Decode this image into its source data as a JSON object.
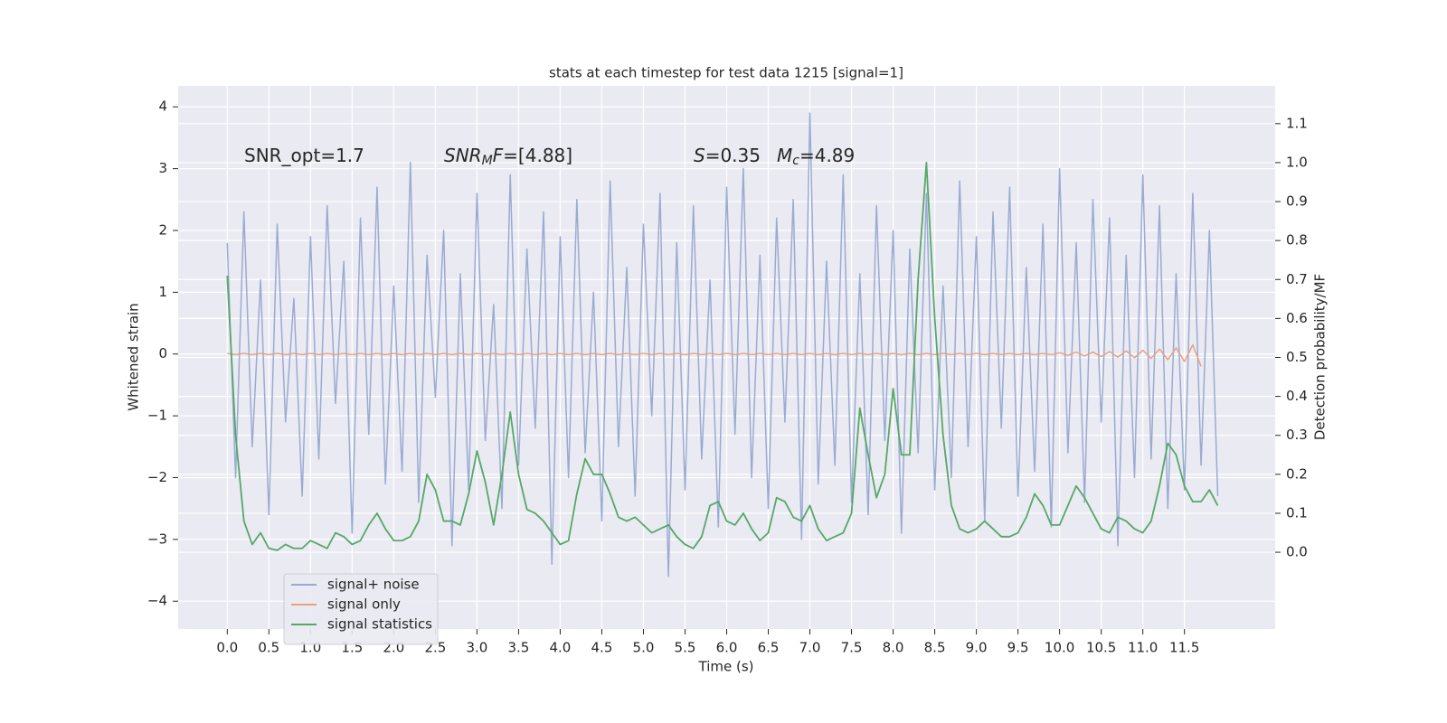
{
  "chart_data": {
    "type": "line",
    "title": "stats at each timestep for test data 1215 [signal=1]",
    "xlabel": "Time (s)",
    "ylabel": "Whitened strain",
    "y2label": "Detection probability/MF",
    "annotations": [
      {
        "parts": [
          {
            "text": "SNR_opt=1.7"
          }
        ]
      },
      {
        "parts": [
          {
            "text": "SNR",
            "italic": true
          },
          {
            "text": "M",
            "italic": true,
            "sub": true
          },
          {
            "text": "F",
            "italic": true
          },
          {
            "text": "=[4.88]"
          }
        ]
      },
      {
        "parts": [
          {
            "text": "S",
            "italic": true
          },
          {
            "text": "=0.35"
          }
        ]
      },
      {
        "parts": [
          {
            "text": "M",
            "italic": true
          },
          {
            "text": "c",
            "italic": true,
            "sub": true
          },
          {
            "text": "=4.89"
          }
        ]
      }
    ],
    "grid": true,
    "background": "#eaeaf2",
    "legend": "lower left",
    "xlim": [
      -0.59,
      12.59
    ],
    "ylim": [
      -4.45,
      4.34
    ],
    "y2lim": [
      -0.197,
      1.197
    ],
    "xticks": [
      {
        "value": 0,
        "label": "0.0"
      },
      {
        "value": 0.5,
        "label": "0.5"
      },
      {
        "value": 1,
        "label": "1.0"
      },
      {
        "value": 1.5,
        "label": "1.5"
      },
      {
        "value": 2,
        "label": "2.0"
      },
      {
        "value": 2.5,
        "label": "2.5"
      },
      {
        "value": 3,
        "label": "3.0"
      },
      {
        "value": 3.5,
        "label": "3.5"
      },
      {
        "value": 4,
        "label": "4.0"
      },
      {
        "value": 4.5,
        "label": "4.5"
      },
      {
        "value": 5,
        "label": "5.0"
      },
      {
        "value": 5.5,
        "label": "5.5"
      },
      {
        "value": 6,
        "label": "6.0"
      },
      {
        "value": 6.5,
        "label": "6.5"
      },
      {
        "value": 7,
        "label": "7.0"
      },
      {
        "value": 7.5,
        "label": "7.5"
      },
      {
        "value": 8,
        "label": "8.0"
      },
      {
        "value": 8.5,
        "label": "8.5"
      },
      {
        "value": 9,
        "label": "9.0"
      },
      {
        "value": 9.5,
        "label": "9.5"
      },
      {
        "value": 10,
        "label": "10.0"
      },
      {
        "value": 10.5,
        "label": "10.5"
      },
      {
        "value": 11,
        "label": "11.0"
      },
      {
        "value": 11.5,
        "label": "11.5"
      }
    ],
    "yticks": [
      {
        "value": -4,
        "label": "−4"
      },
      {
        "value": -3,
        "label": "−3"
      },
      {
        "value": -2,
        "label": "−2"
      },
      {
        "value": -1,
        "label": "−1"
      },
      0,
      1,
      2,
      3,
      4
    ],
    "y2ticks": [
      {
        "value": 0,
        "label": "0.0"
      },
      {
        "value": 0.1,
        "label": "0.1"
      },
      {
        "value": 0.2,
        "label": "0.2"
      },
      {
        "value": 0.3,
        "label": "0.3"
      },
      {
        "value": 0.4,
        "label": "0.4"
      },
      {
        "value": 0.5,
        "label": "0.5"
      },
      {
        "value": 0.6,
        "label": "0.6"
      },
      {
        "value": 0.7,
        "label": "0.7"
      },
      {
        "value": 0.8,
        "label": "0.8"
      },
      {
        "value": 0.9,
        "label": "0.9"
      },
      {
        "value": 1,
        "label": "1.0"
      },
      {
        "value": 1.1,
        "label": "1.1"
      }
    ],
    "x": [
      0,
      0.1,
      0.2,
      0.3,
      0.4,
      0.5,
      0.6,
      0.7,
      0.8,
      0.9,
      1,
      1.1,
      1.2,
      1.3,
      1.4,
      1.5,
      1.6,
      1.7,
      1.8,
      1.9,
      2,
      2.1,
      2.2,
      2.3,
      2.4,
      2.5,
      2.6,
      2.7,
      2.8,
      2.9,
      3,
      3.1,
      3.2,
      3.3,
      3.4,
      3.5,
      3.6,
      3.7,
      3.8,
      3.9,
      4,
      4.1,
      4.2,
      4.3,
      4.4,
      4.5,
      4.6,
      4.7,
      4.8,
      4.9,
      5,
      5.1,
      5.2,
      5.3,
      5.4,
      5.5,
      5.6,
      5.7,
      5.8,
      5.9,
      6,
      6.1,
      6.2,
      6.3,
      6.4,
      6.5,
      6.6,
      6.7,
      6.8,
      6.9,
      7,
      7.1,
      7.2,
      7.3,
      7.4,
      7.5,
      7.6,
      7.7,
      7.8,
      7.9,
      8,
      8.1,
      8.2,
      8.3,
      8.4,
      8.5,
      8.6,
      8.7,
      8.8,
      8.9,
      9,
      9.1,
      9.2,
      9.3,
      9.4,
      9.5,
      9.6,
      9.7,
      9.8,
      9.9,
      10,
      10.1,
      10.2,
      10.3,
      10.4,
      10.5,
      10.6,
      10.7,
      10.8,
      10.9,
      11,
      11.1,
      11.2,
      11.3,
      11.4,
      11.5,
      11.6,
      11.7,
      11.8,
      11.9
    ],
    "series": [
      {
        "name": "signal+ noise",
        "color": "#9aabd2",
        "values": [
          1.8,
          -2.0,
          2.3,
          -1.5,
          1.2,
          -2.6,
          2.1,
          -1.1,
          0.9,
          -2.3,
          1.9,
          -1.7,
          2.4,
          -0.8,
          1.5,
          -2.9,
          2.2,
          -1.3,
          2.7,
          -2.1,
          1.1,
          -1.9,
          3.1,
          -2.4,
          1.6,
          -0.7,
          2.0,
          -3.1,
          1.3,
          -2.2,
          2.6,
          -1.4,
          0.8,
          -2.5,
          2.9,
          -1.8,
          1.7,
          -1.2,
          2.3,
          -3.4,
          1.9,
          -2.0,
          2.5,
          -1.6,
          1.0,
          -2.7,
          2.8,
          -1.5,
          1.4,
          -2.3,
          2.1,
          -1.0,
          2.6,
          -3.6,
          1.8,
          -2.2,
          2.4,
          -1.7,
          1.2,
          -2.8,
          2.7,
          -1.3,
          3.0,
          -2.0,
          1.6,
          -2.5,
          2.2,
          -1.1,
          2.5,
          -3.0,
          3.9,
          -2.1,
          1.5,
          -1.8,
          2.9,
          -2.4,
          1.3,
          -2.6,
          2.4,
          -1.4,
          2.0,
          -2.9,
          1.7,
          -1.6,
          2.6,
          -2.2,
          1.1,
          -2.0,
          2.8,
          -1.5,
          1.9,
          -2.7,
          2.3,
          -1.2,
          2.7,
          -2.3,
          1.4,
          -1.9,
          2.1,
          -2.8,
          3.0,
          -1.6,
          1.8,
          -2.4,
          2.5,
          -1.1,
          2.2,
          -3.1,
          1.6,
          -2.0,
          2.9,
          -1.7,
          2.4,
          -2.5,
          1.3,
          -2.2,
          2.6,
          -1.8,
          2.0,
          -2.3
        ]
      },
      {
        "name": "signal only",
        "color": "#e4a384",
        "values": [
          0.01,
          -0.01,
          0.01,
          -0.01,
          0.01,
          -0.01,
          0.01,
          -0.01,
          0.01,
          -0.01,
          0.01,
          -0.01,
          0.01,
          -0.01,
          0.01,
          -0.01,
          0.01,
          -0.01,
          0.01,
          -0.01,
          0.01,
          -0.01,
          0.01,
          -0.01,
          0.01,
          -0.01,
          0.01,
          -0.01,
          0.01,
          -0.01,
          0.01,
          -0.01,
          0.01,
          -0.01,
          0.01,
          -0.01,
          0.01,
          -0.01,
          0.01,
          -0.01,
          0.01,
          -0.01,
          0.01,
          -0.01,
          0.01,
          -0.01,
          0.01,
          -0.01,
          0.01,
          -0.01,
          0.01,
          -0.01,
          0.01,
          -0.01,
          0.01,
          -0.01,
          0.01,
          -0.01,
          0.01,
          -0.01,
          0.01,
          -0.01,
          0.01,
          -0.01,
          0.01,
          -0.01,
          0.01,
          -0.01,
          0.01,
          -0.01,
          0.01,
          -0.01,
          0.01,
          -0.01,
          0.01,
          -0.01,
          0.01,
          -0.01,
          0.01,
          -0.01,
          0.01,
          -0.01,
          0.01,
          -0.01,
          0.01,
          -0.01,
          0.01,
          -0.01,
          0.01,
          -0.01,
          0.01,
          -0.01,
          0.01,
          -0.01,
          0.01,
          -0.01,
          0.01,
          -0.01,
          0.01,
          -0.01,
          0.02,
          -0.02,
          0.03,
          -0.03,
          0.03,
          -0.04,
          0.04,
          -0.05,
          0.05,
          -0.06,
          0.06,
          -0.07,
          0.08,
          -0.09,
          0.1,
          -0.12,
          0.15,
          -0.2,
          null,
          null
        ]
      },
      {
        "name": "signal statistics",
        "color": "#55a868",
        "axis": "y2",
        "values": [
          0.71,
          0.3,
          0.08,
          0.02,
          0.05,
          0.01,
          0.005,
          0.02,
          0.01,
          0.01,
          0.03,
          0.02,
          0.01,
          0.05,
          0.04,
          0.02,
          0.03,
          0.07,
          0.1,
          0.06,
          0.03,
          0.03,
          0.04,
          0.08,
          0.2,
          0.16,
          0.08,
          0.08,
          0.07,
          0.15,
          0.26,
          0.18,
          0.07,
          0.2,
          0.36,
          0.2,
          0.11,
          0.1,
          0.08,
          0.05,
          0.02,
          0.03,
          0.15,
          0.24,
          0.2,
          0.2,
          0.15,
          0.09,
          0.08,
          0.09,
          0.07,
          0.05,
          0.06,
          0.07,
          0.04,
          0.02,
          0.01,
          0.04,
          0.12,
          0.13,
          0.08,
          0.07,
          0.1,
          0.06,
          0.03,
          0.05,
          0.14,
          0.13,
          0.09,
          0.08,
          0.12,
          0.06,
          0.03,
          0.04,
          0.05,
          0.1,
          0.37,
          0.25,
          0.14,
          0.2,
          0.42,
          0.25,
          0.25,
          0.7,
          1.0,
          0.6,
          0.3,
          0.12,
          0.06,
          0.05,
          0.06,
          0.08,
          0.06,
          0.04,
          0.04,
          0.05,
          0.09,
          0.15,
          0.12,
          0.07,
          0.07,
          0.12,
          0.17,
          0.14,
          0.1,
          0.06,
          0.05,
          0.09,
          0.08,
          0.06,
          0.05,
          0.08,
          0.17,
          0.28,
          0.25,
          0.17,
          0.13,
          0.13,
          0.16,
          0.12
        ]
      }
    ]
  }
}
